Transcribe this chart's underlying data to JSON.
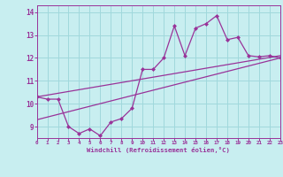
{
  "xlabel": "Windchill (Refroidissement éolien,°C)",
  "xlim": [
    0,
    23
  ],
  "ylim": [
    8.5,
    14.3
  ],
  "yticks": [
    9,
    10,
    11,
    12,
    13,
    14
  ],
  "xticks": [
    0,
    1,
    2,
    3,
    4,
    5,
    6,
    7,
    8,
    9,
    10,
    11,
    12,
    13,
    14,
    15,
    16,
    17,
    18,
    19,
    20,
    21,
    22,
    23
  ],
  "bg_color": "#c8eef0",
  "line_color": "#993399",
  "grid_color": "#a0d8dc",
  "line1_x": [
    0,
    1,
    2,
    3,
    4,
    5,
    6,
    7,
    8,
    9,
    10,
    11,
    12,
    13,
    14,
    15,
    16,
    17,
    18,
    19,
    20,
    21,
    22,
    23
  ],
  "line1_y": [
    10.3,
    10.2,
    10.2,
    9.0,
    8.7,
    8.9,
    8.6,
    9.2,
    9.35,
    9.8,
    11.5,
    11.5,
    12.0,
    13.4,
    12.1,
    13.3,
    13.5,
    13.85,
    12.8,
    12.9,
    12.1,
    12.05,
    12.1,
    12.0
  ],
  "line2_x": [
    0,
    23
  ],
  "line2_y": [
    10.3,
    12.1
  ],
  "line3_x": [
    0,
    23
  ],
  "line3_y": [
    9.3,
    12.0
  ]
}
